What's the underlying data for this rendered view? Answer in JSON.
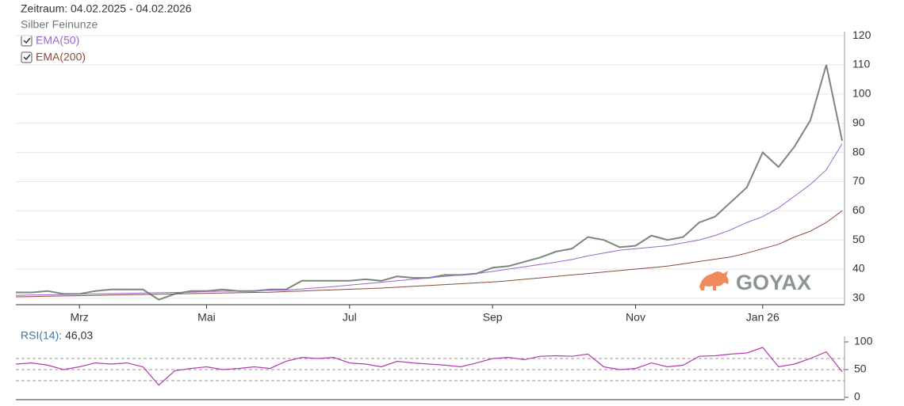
{
  "chart_data": [
    {
      "type": "line",
      "title": "Zeitraum: 04.02.2025 - 04.02.2026",
      "categories": [
        null,
        null,
        null,
        null,
        "Mrz",
        null,
        null,
        null,
        null,
        null,
        null,
        null,
        "Mai",
        null,
        null,
        null,
        null,
        null,
        null,
        null,
        null,
        "Jul",
        null,
        null,
        null,
        null,
        null,
        null,
        null,
        null,
        "Sep",
        null,
        null,
        null,
        null,
        null,
        null,
        null,
        null,
        "Nov",
        null,
        null,
        null,
        null,
        null,
        null,
        null,
        "Jan 26",
        null,
        null,
        null,
        null,
        null
      ],
      "ylim": [
        27.8,
        121.4
      ],
      "yticks": [
        30,
        40,
        50,
        60,
        70,
        80,
        90,
        100,
        110,
        120
      ],
      "grid": true,
      "watermark": "GOYAX",
      "series": [
        {
          "name": "Silber Feinunze",
          "color": "#7a887a",
          "values": [
            32,
            32,
            32.5,
            31.5,
            31.5,
            32.5,
            33,
            33,
            33,
            29.5,
            31.5,
            32.5,
            32.5,
            33,
            32.5,
            32.5,
            33,
            33,
            36,
            36,
            36,
            36,
            36.5,
            36,
            37.5,
            37,
            37,
            38,
            38,
            38.5,
            40.5,
            41,
            42.5,
            44,
            46,
            47,
            51,
            50,
            47.5,
            48,
            51.5,
            50,
            51,
            56,
            58,
            63,
            68,
            80,
            75,
            82,
            91,
            110,
            84
          ]
        },
        {
          "name": "EMA(50)",
          "color": "#9966cc",
          "values": [
            31,
            31.1,
            31.2,
            31.3,
            31.4,
            31.5,
            31.6,
            31.7,
            31.8,
            31.9,
            32,
            32.1,
            32.3,
            32.4,
            32.5,
            32.6,
            32.7,
            32.8,
            33.2,
            33.6,
            34,
            34.5,
            35,
            35.5,
            36,
            36.5,
            37,
            37.5,
            38,
            38.5,
            39.2,
            40,
            40.8,
            41.6,
            42.4,
            43.3,
            44.5,
            45.5,
            46.5,
            47,
            47.5,
            48,
            49,
            50,
            51.5,
            53.5,
            56,
            58,
            61,
            65,
            69,
            74,
            83
          ]
        },
        {
          "name": "EMA(200)",
          "color": "#8b4a3a",
          "values": [
            30.5,
            30.6,
            30.7,
            30.8,
            30.9,
            31,
            31.1,
            31.2,
            31.3,
            31.4,
            31.5,
            31.6,
            31.7,
            31.8,
            31.9,
            32,
            32.1,
            32.3,
            32.5,
            32.7,
            32.9,
            33.1,
            33.3,
            33.5,
            33.8,
            34.1,
            34.4,
            34.7,
            35,
            35.3,
            35.6,
            36,
            36.5,
            37,
            37.5,
            38,
            38.5,
            39,
            39.5,
            40,
            40.5,
            41,
            41.8,
            42.6,
            43.4,
            44.2,
            45.5,
            47,
            48.5,
            51,
            53,
            56,
            60
          ]
        }
      ]
    },
    {
      "type": "line",
      "ylim": [
        0,
        100
      ],
      "yticks": [
        0,
        50,
        100
      ],
      "levels": [
        30,
        50,
        70
      ],
      "series": [
        {
          "name": "RSI(14):",
          "color": "#b03cb0",
          "current": {
            "value": 46.03,
            "label": "46,03"
          },
          "values": [
            60,
            62,
            58,
            50,
            55,
            62,
            60,
            62,
            55,
            22,
            48,
            52,
            55,
            50,
            52,
            55,
            52,
            65,
            72,
            70,
            72,
            62,
            60,
            55,
            65,
            62,
            60,
            58,
            55,
            62,
            70,
            72,
            68,
            74,
            75,
            74,
            78,
            55,
            50,
            52,
            62,
            55,
            58,
            74,
            75,
            78,
            80,
            90,
            55,
            60,
            70,
            82,
            46.03
          ]
        }
      ]
    }
  ]
}
